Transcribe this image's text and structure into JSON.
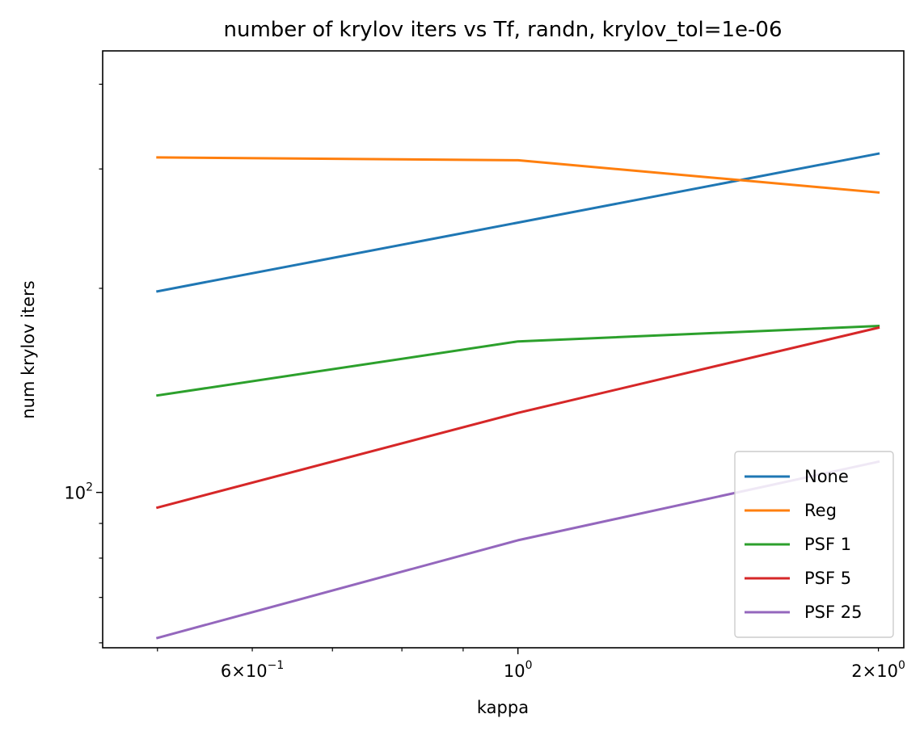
{
  "chart_data": {
    "type": "line",
    "title": "number of krylov iters vs Tf, randn, krylov_tol=1e-06",
    "xlabel": "kappa",
    "ylabel": "num krylov iters",
    "xscale": "log",
    "yscale": "log",
    "xlim": [
      0.45,
      2.1
    ],
    "ylim": [
      59,
      448
    ],
    "x": [
      0.5,
      1.0,
      2.0
    ],
    "x_ticks": [
      {
        "value": 0.6,
        "mant": "6",
        "op": "×",
        "base": "10",
        "exp": "−1"
      },
      {
        "value": 1.0,
        "mant": "",
        "op": "",
        "base": "10",
        "exp": "0"
      },
      {
        "value": 2.0,
        "mant": "2",
        "op": "×",
        "base": "10",
        "exp": "0"
      }
    ],
    "y_ticks": [
      {
        "value": 100,
        "base": "10",
        "exp": "2"
      }
    ],
    "grid": false,
    "legend_position": "bottom-right",
    "series": [
      {
        "name": "None",
        "color": "#1f77b4",
        "values": [
          198,
          250,
          316
        ]
      },
      {
        "name": "Reg",
        "color": "#ff7f0e",
        "values": [
          312,
          309,
          277
        ]
      },
      {
        "name": "PSF 1",
        "color": "#2ca02c",
        "values": [
          139,
          167,
          176
        ]
      },
      {
        "name": "PSF 5",
        "color": "#d62728",
        "values": [
          95,
          131,
          175
        ]
      },
      {
        "name": "PSF 25",
        "color": "#9467bd",
        "values": [
          61,
          85,
          111
        ]
      }
    ]
  }
}
